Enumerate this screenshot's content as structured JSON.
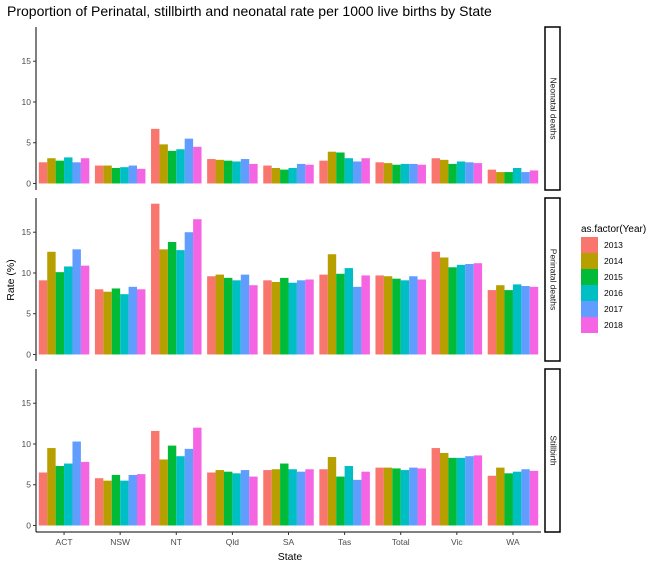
{
  "chart_data": {
    "type": "bar",
    "title": "Proportion of Perinatal, stillbirth and neonatal rate per 1000 live births by State",
    "xlabel": "State",
    "ylabel": "Rate (%)",
    "ylim": [
      -0.8,
      19.2
    ],
    "yticks": [
      0,
      5,
      10,
      15
    ],
    "grid": false,
    "legend_title": "as.factor(Year)",
    "legend_position": "right",
    "categories": [
      "ACT",
      "NSW",
      "NT",
      "Qld",
      "SA",
      "Tas",
      "Total",
      "Vic",
      "WA"
    ],
    "series_names": [
      "2013",
      "2014",
      "2015",
      "2016",
      "2017",
      "2018"
    ],
    "colors": [
      "#F8766D",
      "#B79F00",
      "#00BA38",
      "#00BFC4",
      "#619CFF",
      "#F564E3"
    ],
    "panels": [
      {
        "strip": "Neonatal deaths",
        "series": [
          {
            "name": "2013",
            "values": [
              2.6,
              2.2,
              6.7,
              3.0,
              2.2,
              2.8,
              2.6,
              3.1,
              1.7
            ]
          },
          {
            "name": "2014",
            "values": [
              3.1,
              2.2,
              4.8,
              2.9,
              1.9,
              3.9,
              2.5,
              2.9,
              1.4
            ]
          },
          {
            "name": "2015",
            "values": [
              2.8,
              1.9,
              4.0,
              2.8,
              1.7,
              3.8,
              2.3,
              2.4,
              1.4
            ]
          },
          {
            "name": "2016",
            "values": [
              3.2,
              2.0,
              4.2,
              2.7,
              1.9,
              3.1,
              2.4,
              2.7,
              1.9
            ]
          },
          {
            "name": "2017",
            "values": [
              2.6,
              2.2,
              5.5,
              3.0,
              2.4,
              2.7,
              2.4,
              2.6,
              1.4
            ]
          },
          {
            "name": "2018",
            "values": [
              3.1,
              1.8,
              4.5,
              2.4,
              2.3,
              3.1,
              2.3,
              2.5,
              1.6
            ]
          }
        ]
      },
      {
        "strip": "Perinatal deaths",
        "series": [
          {
            "name": "2013",
            "values": [
              9.1,
              8.0,
              18.5,
              9.6,
              9.1,
              9.8,
              9.7,
              12.6,
              7.9
            ]
          },
          {
            "name": "2014",
            "values": [
              12.6,
              7.7,
              12.9,
              9.8,
              8.9,
              12.3,
              9.6,
              11.9,
              8.5
            ]
          },
          {
            "name": "2015",
            "values": [
              10.1,
              8.1,
              13.8,
              9.4,
              9.4,
              9.9,
              9.3,
              10.7,
              7.9
            ]
          },
          {
            "name": "2016",
            "values": [
              10.8,
              7.4,
              12.8,
              9.1,
              8.8,
              10.6,
              9.1,
              11.0,
              8.6
            ]
          },
          {
            "name": "2017",
            "values": [
              12.9,
              8.3,
              15.0,
              9.8,
              9.1,
              8.3,
              9.6,
              11.1,
              8.4
            ]
          },
          {
            "name": "2018",
            "values": [
              10.9,
              8.0,
              16.6,
              8.5,
              9.2,
              9.7,
              9.2,
              11.2,
              8.3
            ]
          }
        ]
      },
      {
        "strip": "Stillbirth",
        "series": [
          {
            "name": "2013",
            "values": [
              6.5,
              5.8,
              11.6,
              6.5,
              6.8,
              6.9,
              7.1,
              9.5,
              6.1
            ]
          },
          {
            "name": "2014",
            "values": [
              9.5,
              5.5,
              8.1,
              6.8,
              6.9,
              8.4,
              7.1,
              8.9,
              7.1
            ]
          },
          {
            "name": "2015",
            "values": [
              7.3,
              6.2,
              9.8,
              6.6,
              7.6,
              6.0,
              7.0,
              8.3,
              6.4
            ]
          },
          {
            "name": "2016",
            "values": [
              7.6,
              5.5,
              8.5,
              6.4,
              6.9,
              7.3,
              6.8,
              8.3,
              6.6
            ]
          },
          {
            "name": "2017",
            "values": [
              10.3,
              6.2,
              9.4,
              6.8,
              6.6,
              5.6,
              7.1,
              8.5,
              6.9
            ]
          },
          {
            "name": "2018",
            "values": [
              7.8,
              6.3,
              12.0,
              6.0,
              6.9,
              6.6,
              7.0,
              8.6,
              6.7
            ]
          }
        ]
      }
    ]
  }
}
